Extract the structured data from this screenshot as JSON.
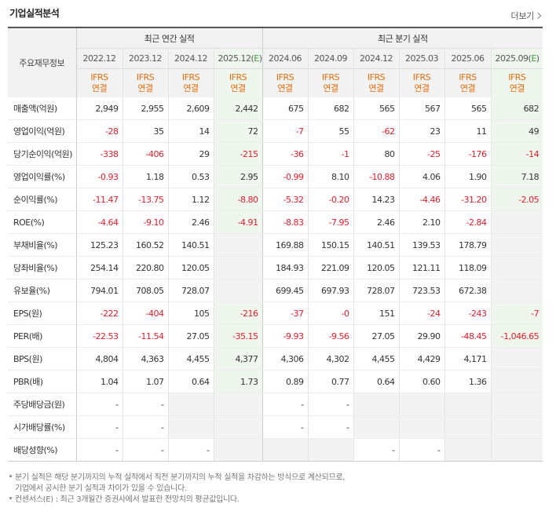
{
  "title": "기업실적분석",
  "more_label": "더보기",
  "header": {
    "row_label": "주요재무정보",
    "annual_label": "최근 연간 실적",
    "quarter_label": "최근 분기 실적",
    "periods": [
      "2022.12",
      "2023.12",
      "2024.12",
      "2025.12(E)",
      "2024.06",
      "2024.09",
      "2024.12",
      "2025.03",
      "2025.06",
      "2025.09(E)"
    ],
    "ifrs_line1": "IFRS",
    "ifrs_line2": "연결"
  },
  "rows": [
    {
      "label": "매출액(억원)",
      "values": [
        "2,949",
        "2,955",
        "2,609",
        "2,442",
        "675",
        "682",
        "565",
        "567",
        "565",
        "682"
      ]
    },
    {
      "label": "영업이익(억원)",
      "values": [
        "-28",
        "35",
        "14",
        "72",
        "-7",
        "55",
        "-62",
        "23",
        "11",
        "49"
      ]
    },
    {
      "label": "당기순이익(억원)",
      "values": [
        "-338",
        "-406",
        "29",
        "-215",
        "-36",
        "-1",
        "80",
        "-25",
        "-176",
        "-14"
      ]
    },
    {
      "label": "영업이익률(%)",
      "values": [
        "-0.93",
        "1.18",
        "0.53",
        "2.95",
        "-0.99",
        "8.10",
        "-10.88",
        "4.06",
        "1.90",
        "7.18"
      ]
    },
    {
      "label": "순이익률(%)",
      "values": [
        "-11.47",
        "-13.75",
        "1.12",
        "-8.80",
        "-5.32",
        "-0.20",
        "14.23",
        "-4.46",
        "-31.20",
        "-2.05"
      ]
    },
    {
      "label": "ROE(%)",
      "values": [
        "-4.64",
        "-9.10",
        "2.46",
        "-4.91",
        "-8.83",
        "-7.95",
        "2.46",
        "2.10",
        "-2.84",
        ""
      ]
    },
    {
      "label": "부채비율(%)",
      "values": [
        "125.23",
        "160.52",
        "140.51",
        "",
        "169.88",
        "150.15",
        "140.51",
        "139.53",
        "178.79",
        ""
      ]
    },
    {
      "label": "당좌비율(%)",
      "values": [
        "254.14",
        "220.80",
        "120.05",
        "",
        "184.93",
        "221.09",
        "120.05",
        "121.11",
        "118.09",
        ""
      ]
    },
    {
      "label": "유보율(%)",
      "values": [
        "794.01",
        "708.05",
        "728.07",
        "",
        "699.45",
        "697.93",
        "728.07",
        "723.53",
        "672.38",
        ""
      ]
    },
    {
      "label": "EPS(원)",
      "values": [
        "-222",
        "-404",
        "105",
        "-216",
        "-37",
        "-0",
        "151",
        "-24",
        "-243",
        "-7"
      ]
    },
    {
      "label": "PER(배)",
      "values": [
        "-22.53",
        "-11.54",
        "27.05",
        "-35.15",
        "-9.93",
        "-9.56",
        "27.05",
        "29.90",
        "-48.45",
        "-1,046.65"
      ]
    },
    {
      "label": "BPS(원)",
      "values": [
        "4,804",
        "4,363",
        "4,455",
        "4,377",
        "4,306",
        "4,302",
        "4,455",
        "4,429",
        "4,171",
        ""
      ]
    },
    {
      "label": "PBR(배)",
      "values": [
        "1.04",
        "1.07",
        "0.64",
        "1.73",
        "0.89",
        "0.77",
        "0.64",
        "0.60",
        "1.36",
        ""
      ]
    },
    {
      "label": "주당배당금(원)",
      "values": [
        "-",
        "-",
        "",
        "",
        "-",
        "-",
        "",
        "",
        "",
        ""
      ]
    },
    {
      "label": "시가배당률(%)",
      "values": [
        "-",
        "-",
        "",
        "",
        "-",
        "-",
        "",
        "",
        "",
        ""
      ]
    },
    {
      "label": "배당성향(%)",
      "values": [
        "-",
        "-",
        "-",
        "",
        "",
        "",
        "-",
        "-",
        "",
        ""
      ]
    }
  ],
  "notes": {
    "line1": "분기 실적은 해당 분기까지의 누적 실적에서 직전 분기까지의 누적 실적을 차감하는 방식으로 계산되므로,",
    "line2": "기업에서 공시한 분기 실적과 차이가 있을 수 있습니다.",
    "line3": "컨센서스(E) : 최근 3개월간 증권사에서 발표한 전망치의 평균값입니다."
  },
  "colors": {
    "negative": "#e21c2a",
    "ifrs": "#e46c0a",
    "estimate_bg": "#eef6ee",
    "estimate_mark": "#3c9e3c"
  }
}
